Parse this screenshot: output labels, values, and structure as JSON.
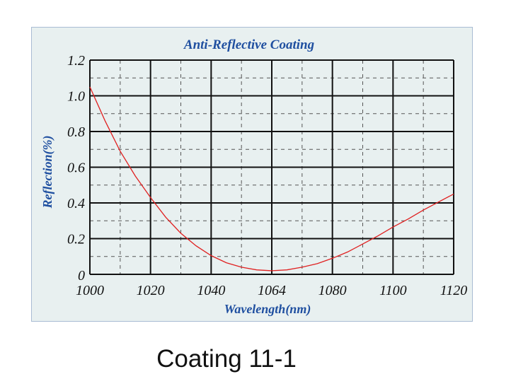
{
  "chart_data": {
    "type": "line",
    "title": "Anti-Reflective Coating",
    "xlabel": "Wavelength(nm)",
    "ylabel": "Reflection(%)",
    "xlim": [
      1000,
      1120
    ],
    "ylim": [
      0,
      1.2
    ],
    "x_tick_labels": [
      "1000",
      "1020",
      "1040",
      "1064",
      "1080",
      "1100",
      "1120"
    ],
    "y_tick_labels": [
      "0",
      "0.2",
      "0.4",
      "0.6",
      "0.8",
      "1.0",
      "1.2"
    ],
    "grid": true,
    "series": [
      {
        "name": "Reflection",
        "color": "#e02020",
        "x": [
          1000,
          1005,
          1010,
          1015,
          1020,
          1025,
          1030,
          1035,
          1040,
          1045,
          1050,
          1055,
          1060,
          1065,
          1070,
          1075,
          1080,
          1085,
          1090,
          1095,
          1100,
          1105,
          1110,
          1115,
          1120
        ],
        "y": [
          1.05,
          0.86,
          0.69,
          0.55,
          0.43,
          0.32,
          0.23,
          0.16,
          0.105,
          0.065,
          0.04,
          0.025,
          0.02,
          0.025,
          0.04,
          0.06,
          0.09,
          0.125,
          0.17,
          0.215,
          0.265,
          0.31,
          0.36,
          0.405,
          0.45
        ]
      }
    ]
  },
  "caption": "Coating 11-1"
}
